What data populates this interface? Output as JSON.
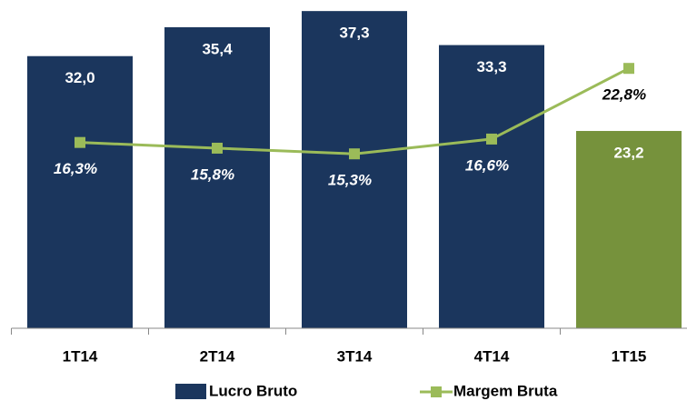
{
  "chart_data": {
    "type": "bar",
    "categories": [
      "1T14",
      "2T14",
      "3T14",
      "4T14",
      "1T15"
    ],
    "series": [
      {
        "name": "Lucro Bruto",
        "type": "bar",
        "color": "#1b365d",
        "colors": [
          "#1b365d",
          "#1b365d",
          "#1b365d",
          "#1b365d",
          "#76923c"
        ],
        "values": [
          32.0,
          35.4,
          37.3,
          33.3,
          23.2
        ],
        "value_labels": [
          "32,0",
          "35,4",
          "37,3",
          "33,3",
          "23,2"
        ]
      },
      {
        "name": "Margem Bruta",
        "type": "line",
        "axis": "y2",
        "color": "#9bbb59",
        "values": [
          16.3,
          15.8,
          15.3,
          16.6,
          22.8
        ],
        "value_labels": [
          "16,3%",
          "15,8%",
          "15,3%",
          "16,6%",
          "22,8%"
        ]
      }
    ],
    "ylim": [
      0,
      38.6
    ],
    "y2lim": [
      0,
      28.8
    ]
  }
}
